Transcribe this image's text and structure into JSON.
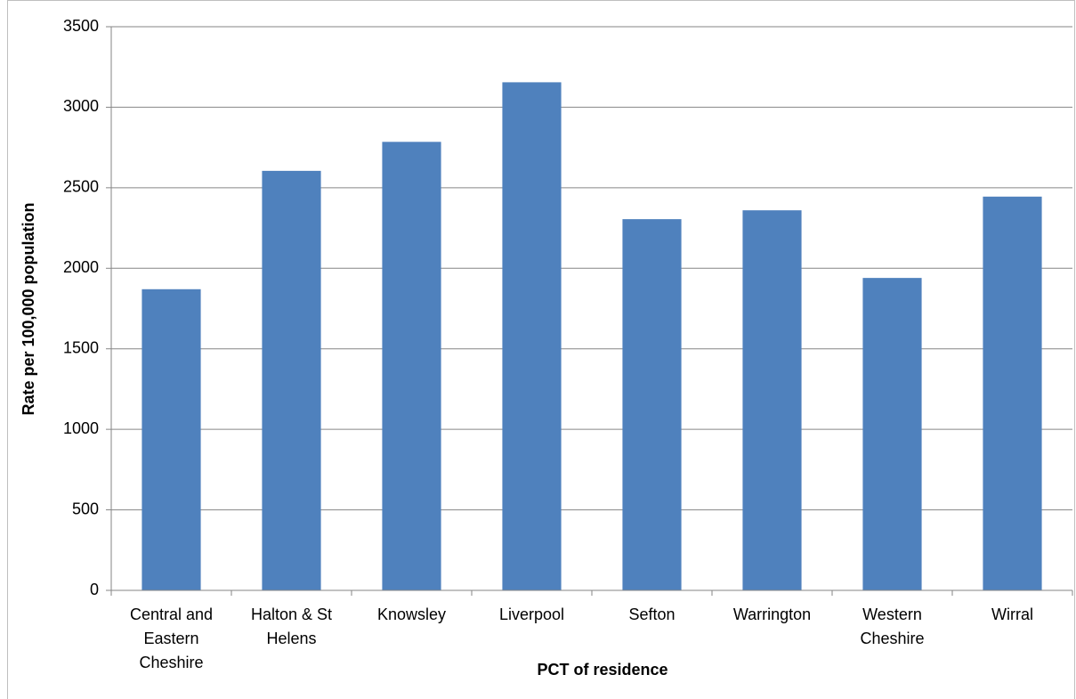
{
  "chart_data": {
    "type": "bar",
    "categories": [
      "Central and Eastern Cheshire",
      "Halton & St Helens",
      "Knowsley",
      "Liverpool",
      "Sefton",
      "Warrington",
      "Western Cheshire",
      "Wirral"
    ],
    "values": [
      1870,
      2605,
      2785,
      3155,
      2305,
      2360,
      1940,
      2445
    ],
    "color": "#4f81bd",
    "x_label": "PCT of residence",
    "y_label": "Rate per 100,000 population",
    "ylim": [
      0,
      3500
    ],
    "yticks": [
      0,
      500,
      1000,
      1500,
      2000,
      2500,
      3000,
      3500
    ],
    "grid": true
  }
}
